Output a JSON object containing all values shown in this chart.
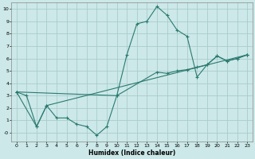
{
  "xlabel": "Humidex (Indice chaleur)",
  "bg_color": "#cce8e8",
  "grid_color": "#aacccc",
  "line_color": "#2a7a6f",
  "xlim": [
    -0.5,
    23.5
  ],
  "ylim": [
    -0.7,
    10.5
  ],
  "xticks": [
    0,
    1,
    2,
    3,
    4,
    5,
    6,
    7,
    8,
    9,
    10,
    11,
    12,
    13,
    14,
    15,
    16,
    17,
    18,
    19,
    20,
    21,
    22,
    23
  ],
  "yticks": [
    0,
    1,
    2,
    3,
    4,
    5,
    6,
    7,
    8,
    9,
    10
  ],
  "ytick_labels": [
    "-0",
    "1",
    "2",
    "3",
    "4",
    "5",
    "6",
    "7",
    "8",
    "9",
    "10"
  ],
  "line1_x": [
    0,
    1,
    2,
    3,
    4,
    5,
    6,
    7,
    8,
    9,
    10,
    11,
    12,
    13,
    14,
    15,
    16,
    17,
    18,
    19,
    20,
    21,
    22,
    23
  ],
  "line1_y": [
    3.3,
    3.0,
    0.5,
    2.2,
    1.2,
    1.2,
    0.7,
    0.5,
    -0.2,
    0.5,
    3.0,
    6.3,
    8.8,
    9.0,
    10.2,
    9.5,
    8.3,
    7.8,
    4.5,
    5.5,
    6.2,
    5.8,
    6.0,
    6.3
  ],
  "line2_x": [
    0,
    10,
    14,
    15,
    16,
    17,
    18,
    19,
    20,
    21,
    22,
    23
  ],
  "line2_y": [
    3.3,
    3.0,
    4.9,
    4.8,
    5.0,
    5.1,
    5.3,
    5.5,
    6.2,
    5.8,
    6.0,
    6.3
  ],
  "line3_x": [
    0,
    2,
    3,
    23
  ],
  "line3_y": [
    3.3,
    0.5,
    2.2,
    6.3
  ],
  "lw": 0.8,
  "ms": 2.5,
  "tick_fontsize": 4.5,
  "xlabel_fontsize": 5.5
}
